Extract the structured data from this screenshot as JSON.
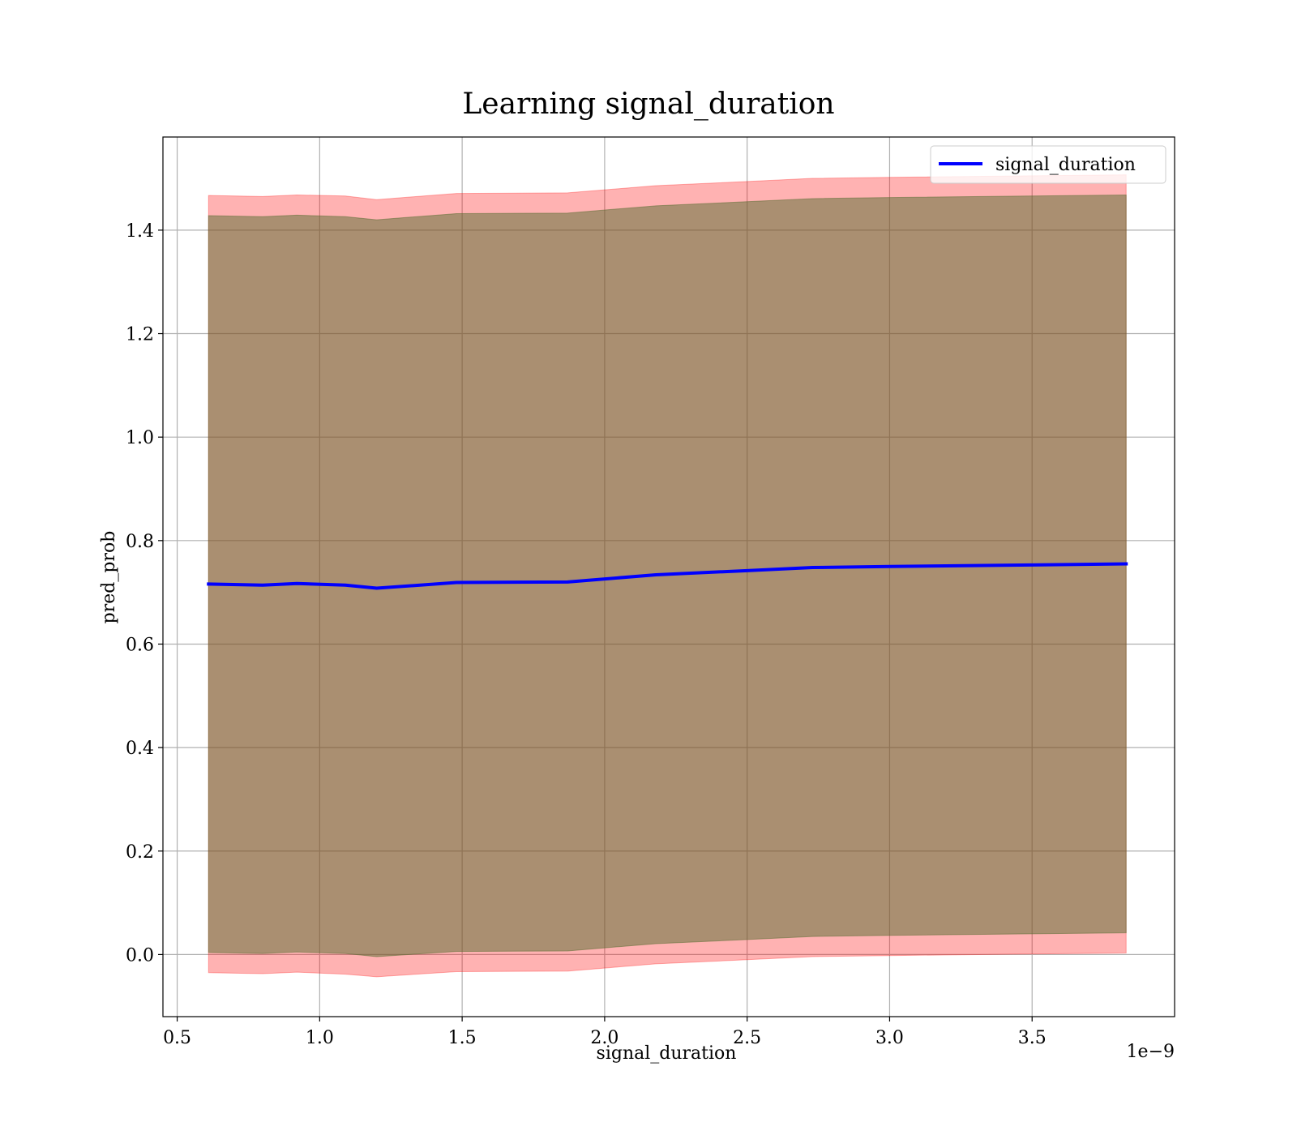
{
  "chart_data": {
    "type": "line",
    "title": "Learning signal_duration",
    "xlabel": "signal_duration",
    "ylabel": "pred_prob",
    "x_offset_text": "1e−9",
    "xlim": [
      0.45,
      4.0
    ],
    "ylim": [
      -0.12,
      1.58
    ],
    "grid": true,
    "legend_position": "top-right",
    "x_ticks": [
      0.5,
      1.0,
      1.5,
      2.0,
      2.5,
      3.0,
      3.5
    ],
    "x_tick_labels": [
      "0.5",
      "1.0",
      "1.5",
      "2.0",
      "2.5",
      "3.0",
      "3.5"
    ],
    "y_ticks": [
      0.0,
      0.2,
      0.4,
      0.6,
      0.8,
      1.0,
      1.2,
      1.4
    ],
    "y_tick_labels": [
      "0.0",
      "0.2",
      "0.4",
      "0.6",
      "0.8",
      "1.0",
      "1.2",
      "1.4"
    ],
    "series": [
      {
        "name": "signal_duration",
        "color": "#0000ff",
        "x": [
          0.61,
          0.8,
          0.92,
          1.09,
          1.2,
          1.48,
          1.87,
          2.18,
          2.5,
          2.73,
          3.0,
          3.5,
          3.83
        ],
        "values": [
          0.716,
          0.714,
          0.717,
          0.714,
          0.708,
          0.719,
          0.72,
          0.734,
          0.742,
          0.748,
          0.75,
          0.753,
          0.755
        ],
        "band_outer": {
          "color": "#ff0000",
          "lower": [
            -0.035,
            -0.037,
            -0.034,
            -0.038,
            -0.043,
            -0.033,
            -0.032,
            -0.018,
            -0.01,
            -0.004,
            -0.002,
            0.001,
            0.003
          ],
          "upper": [
            1.467,
            1.465,
            1.468,
            1.466,
            1.459,
            1.471,
            1.472,
            1.486,
            1.494,
            1.5,
            1.502,
            1.505,
            1.507
          ]
        },
        "band_inner": {
          "color": "#556b2f",
          "lower": [
            0.004,
            0.002,
            0.005,
            0.002,
            -0.004,
            0.006,
            0.007,
            0.021,
            0.029,
            0.035,
            0.037,
            0.04,
            0.042
          ],
          "upper": [
            1.428,
            1.426,
            1.429,
            1.426,
            1.42,
            1.432,
            1.433,
            1.447,
            1.455,
            1.461,
            1.463,
            1.466,
            1.468
          ]
        }
      }
    ]
  }
}
